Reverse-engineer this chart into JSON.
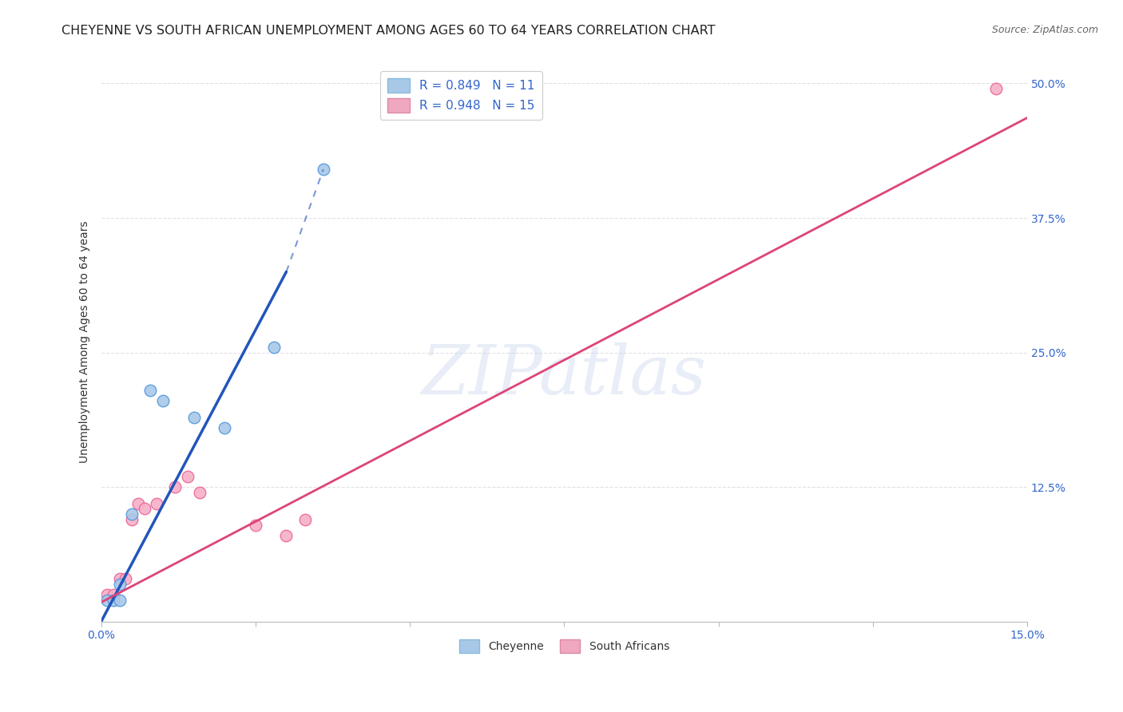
{
  "title": "CHEYENNE VS SOUTH AFRICAN UNEMPLOYMENT AMONG AGES 60 TO 64 YEARS CORRELATION CHART",
  "source": "Source: ZipAtlas.com",
  "ylabel": "Unemployment Among Ages 60 to 64 years",
  "xlim": [
    0.0,
    0.15
  ],
  "ylim": [
    0.0,
    0.52
  ],
  "xticks": [
    0.0,
    0.025,
    0.05,
    0.075,
    0.1,
    0.125,
    0.15
  ],
  "yticks": [
    0.0,
    0.125,
    0.25,
    0.375,
    0.5
  ],
  "ytick_labels_right": [
    "",
    "12.5%",
    "25.0%",
    "37.5%",
    "50.0%"
  ],
  "xtick_labels": [
    "0.0%",
    "",
    "",
    "",
    "",
    "",
    "15.0%"
  ],
  "background_color": "#ffffff",
  "grid_color": "#e0e0e8",
  "watermark": "ZIPatlas",
  "cheyenne_color": "#a8c8e8",
  "sa_color": "#f0a8c0",
  "cheyenne_line_color": "#2255bb",
  "sa_line_color": "#dd4477",
  "cheyenne_scatter_facecolor": "#a8c8e8",
  "cheyenne_scatter_edgecolor": "#5599dd",
  "sa_scatter_facecolor": "#f5b0c8",
  "sa_scatter_edgecolor": "#ee6699",
  "cheyenne_points": [
    [
      0.001,
      0.02
    ],
    [
      0.002,
      0.02
    ],
    [
      0.003,
      0.02
    ],
    [
      0.003,
      0.035
    ],
    [
      0.005,
      0.1
    ],
    [
      0.008,
      0.215
    ],
    [
      0.01,
      0.205
    ],
    [
      0.015,
      0.19
    ],
    [
      0.02,
      0.18
    ],
    [
      0.028,
      0.255
    ],
    [
      0.036,
      0.42
    ]
  ],
  "sa_points": [
    [
      0.001,
      0.025
    ],
    [
      0.002,
      0.025
    ],
    [
      0.003,
      0.04
    ],
    [
      0.004,
      0.04
    ],
    [
      0.005,
      0.095
    ],
    [
      0.006,
      0.11
    ],
    [
      0.007,
      0.105
    ],
    [
      0.009,
      0.11
    ],
    [
      0.012,
      0.125
    ],
    [
      0.014,
      0.135
    ],
    [
      0.016,
      0.12
    ],
    [
      0.025,
      0.09
    ],
    [
      0.03,
      0.08
    ],
    [
      0.033,
      0.095
    ],
    [
      0.145,
      0.495
    ]
  ],
  "cheyenne_line_solid": [
    [
      0.0,
      0.0
    ],
    [
      0.03,
      0.325
    ]
  ],
  "cheyenne_line_dashed": [
    [
      0.03,
      0.325
    ],
    [
      0.036,
      0.42
    ]
  ],
  "sa_line_solid": [
    [
      0.0,
      0.018
    ],
    [
      0.15,
      0.468
    ]
  ],
  "title_fontsize": 11.5,
  "axis_tick_fontsize": 10,
  "legend_fontsize": 11,
  "source_fontsize": 9,
  "ylabel_fontsize": 10,
  "marker_size": 110
}
